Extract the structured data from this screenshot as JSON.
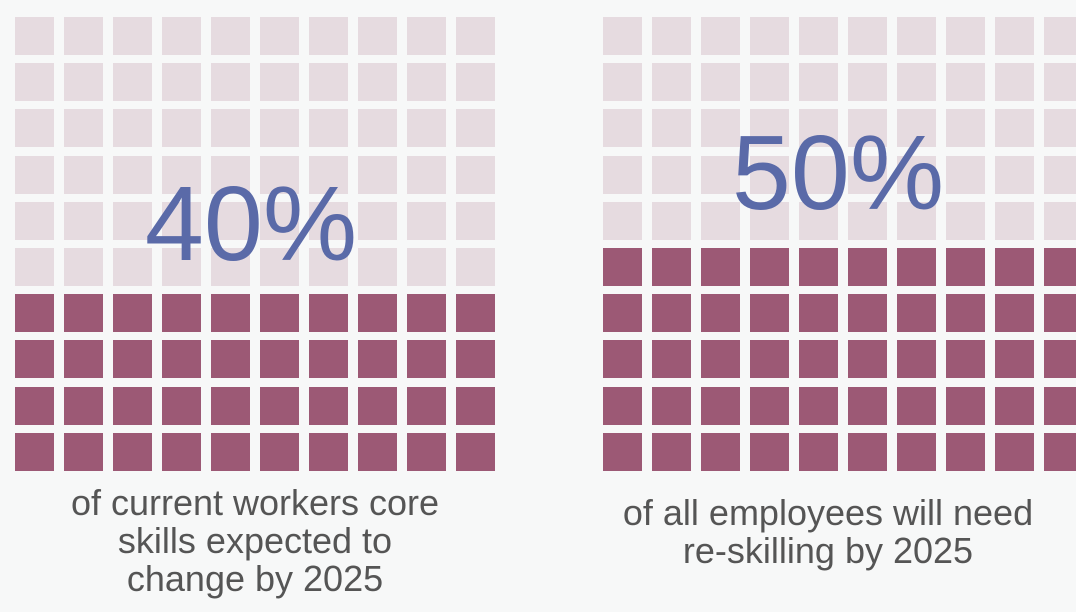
{
  "colors": {
    "background": "#f7f8f8",
    "filled": "#9c5975",
    "empty": "#e6dbe0",
    "percent_text": "#5a6aa8",
    "caption_text": "#555555"
  },
  "chart_data": [
    {
      "type": "waffle",
      "grid_rows": 10,
      "grid_cols": 10,
      "value": 40,
      "value_label": "40%",
      "caption_lines": [
        "of current workers core",
        "skills expected to",
        "change by 2025"
      ]
    },
    {
      "type": "waffle",
      "grid_rows": 10,
      "grid_cols": 10,
      "value": 50,
      "value_label": "50%",
      "caption_lines": [
        "of all employees will need",
        "re-skilling by 2025"
      ]
    }
  ]
}
